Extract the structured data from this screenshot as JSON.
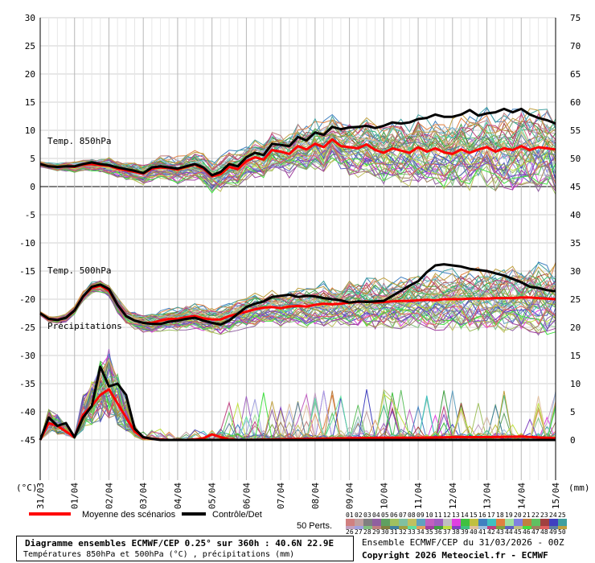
{
  "chart_data": {
    "type": "line",
    "left_axis": {
      "unit": "(°C)",
      "range": [
        -45,
        30
      ],
      "ticks": [
        30,
        25,
        20,
        15,
        10,
        5,
        0,
        -5,
        -10,
        -15,
        -20,
        -25,
        -30,
        -35,
        -40,
        -45
      ]
    },
    "right_axis": {
      "unit": "(mm)",
      "range": [
        0,
        75
      ],
      "ticks": [
        75,
        70,
        65,
        60,
        55,
        50,
        45,
        40,
        35,
        30,
        25,
        20,
        15,
        10,
        5,
        0
      ]
    },
    "x_labels": [
      "31/03",
      "01/04",
      "02/04",
      "03/04",
      "04/04",
      "05/04",
      "06/04",
      "07/04",
      "08/04",
      "09/04",
      "10/04",
      "11/04",
      "12/04",
      "13/04",
      "14/04",
      "15/04"
    ],
    "panel_labels": {
      "t850": "Temp. 850hPa",
      "t500": "Temp. 500hPa",
      "precip": "Précipitations"
    },
    "grid": true,
    "series": [
      {
        "name": "Moyenne des scénarios",
        "color": "#ff0000",
        "group": "t850",
        "x": [
          0,
          0.25,
          0.5,
          0.75,
          1,
          1.25,
          1.5,
          1.75,
          2,
          2.25,
          2.5,
          2.75,
          3,
          3.25,
          3.5,
          3.75,
          4,
          4.25,
          4.5,
          4.75,
          5,
          5.25,
          5.5,
          5.75,
          6,
          6.25,
          6.5,
          6.75,
          7,
          7.25,
          7.5,
          7.75,
          8,
          8.25,
          8.5,
          8.75,
          9,
          9.25,
          9.5,
          9.75,
          10,
          10.25,
          10.5,
          10.75,
          11,
          11.25,
          11.5,
          11.75,
          12,
          12.25,
          12.5,
          12.75,
          13,
          13.25,
          13.5,
          13.75,
          14,
          14.25,
          14.5,
          14.75,
          15
        ],
        "y": [
          4,
          3.6,
          3.5,
          3.6,
          3.5,
          3.9,
          4,
          3.8,
          3.7,
          3.2,
          2.9,
          2.6,
          2.3,
          3.2,
          3.4,
          3.3,
          3,
          3.5,
          3.9,
          3.2,
          1.8,
          2.2,
          3.5,
          3.1,
          4.5,
          5.2,
          4.8,
          6.5,
          6.2,
          5.8,
          7.2,
          6.6,
          7.6,
          7,
          8.4,
          7.2,
          7,
          6.8,
          7.5,
          6.5,
          6,
          6.8,
          6.4,
          6,
          7,
          6.2,
          6.8,
          6.1,
          5.8,
          6.6,
          6,
          6.6,
          7,
          6.2,
          6.8,
          6.5,
          7.2,
          6.5,
          7,
          6.8,
          6.6
        ]
      },
      {
        "name": "Contrôle/Det",
        "color": "#000000",
        "group": "t850",
        "x": [
          0,
          0.25,
          0.5,
          0.75,
          1,
          1.25,
          1.5,
          1.75,
          2,
          2.25,
          2.5,
          2.75,
          3,
          3.25,
          3.5,
          3.75,
          4,
          4.25,
          4.5,
          4.75,
          5,
          5.25,
          5.5,
          5.75,
          6,
          6.25,
          6.5,
          6.75,
          7,
          7.25,
          7.5,
          7.75,
          8,
          8.25,
          8.5,
          8.75,
          9,
          9.25,
          9.5,
          9.75,
          10,
          10.25,
          10.5,
          10.75,
          11,
          11.25,
          11.5,
          11.75,
          12,
          12.25,
          12.5,
          12.75,
          13,
          13.25,
          13.5,
          13.75,
          14,
          14.25,
          14.5,
          14.75,
          15
        ],
        "y": [
          4,
          3.6,
          3.5,
          3.6,
          3.6,
          4,
          4.3,
          4,
          3.8,
          3.4,
          3.1,
          2.8,
          2.4,
          3.4,
          3.6,
          3.4,
          3.2,
          3.6,
          4,
          3.4,
          2,
          2.6,
          4,
          3.6,
          5.2,
          6,
          5.6,
          7.6,
          7.4,
          7.2,
          8.8,
          8.2,
          9.6,
          9.2,
          10.6,
          10.2,
          10.5,
          10.6,
          10.8,
          10.4,
          10.8,
          11.4,
          11.2,
          11.4,
          12,
          12.2,
          12.8,
          12.4,
          12.4,
          12.8,
          13.6,
          12.6,
          13,
          13.2,
          13.8,
          13.2,
          13.8,
          12.8,
          12.2,
          11.8,
          11.2
        ]
      },
      {
        "name": "Moyenne des scénarios",
        "color": "#ff0000",
        "group": "t500",
        "x": [
          0,
          0.25,
          0.5,
          0.75,
          1,
          1.25,
          1.5,
          1.75,
          2,
          2.25,
          2.5,
          2.75,
          3,
          3.25,
          3.5,
          3.75,
          4,
          4.25,
          4.5,
          4.75,
          5,
          5.25,
          5.5,
          5.75,
          6,
          6.25,
          6.5,
          6.75,
          7,
          7.25,
          7.5,
          7.75,
          8,
          8.25,
          8.5,
          8.75,
          9,
          9.25,
          9.5,
          9.75,
          10,
          10.25,
          10.5,
          10.75,
          11,
          11.25,
          11.5,
          11.75,
          12,
          12.25,
          12.5,
          12.75,
          13,
          13.25,
          13.5,
          13.75,
          14,
          14.25,
          14.5,
          14.75,
          15
        ],
        "y": [
          -22.5,
          -23.5,
          -23.7,
          -23.3,
          -22,
          -19.5,
          -18,
          -17.6,
          -18.5,
          -21,
          -23,
          -23.8,
          -24.2,
          -24.2,
          -23.8,
          -23.5,
          -23.5,
          -23.2,
          -23,
          -23.4,
          -23.6,
          -23.6,
          -23,
          -22.6,
          -22.2,
          -21.8,
          -21.5,
          -21.4,
          -21.6,
          -21.3,
          -21.2,
          -21.3,
          -21,
          -20.8,
          -20.9,
          -20.8,
          -20.6,
          -20.5,
          -20.4,
          -20.6,
          -20.5,
          -20.4,
          -20.3,
          -20.3,
          -20.2,
          -20.1,
          -20.2,
          -20,
          -20,
          -20,
          -19.9,
          -19.9,
          -19.9,
          -19.8,
          -19.8,
          -19.8,
          -19.7,
          -19.7,
          -19.8,
          -19.9,
          -20
        ]
      },
      {
        "name": "Contrôle/Det",
        "color": "#000000",
        "group": "t500",
        "x": [
          0,
          0.25,
          0.5,
          0.75,
          1,
          1.25,
          1.5,
          1.75,
          2,
          2.25,
          2.5,
          2.75,
          3,
          3.25,
          3.5,
          3.75,
          4,
          4.25,
          4.5,
          4.75,
          5,
          5.25,
          5.5,
          5.75,
          6,
          6.25,
          6.5,
          6.75,
          7,
          7.25,
          7.5,
          7.75,
          8,
          8.25,
          8.5,
          8.75,
          9,
          9.25,
          9.5,
          9.75,
          10,
          10.25,
          10.5,
          10.75,
          11,
          11.25,
          11.5,
          11.75,
          12,
          12.25,
          12.5,
          12.75,
          13,
          13.25,
          13.5,
          13.75,
          14,
          14.25,
          14.5,
          14.75,
          15
        ],
        "y": [
          -22.5,
          -23.5,
          -23.7,
          -23.3,
          -22,
          -19.5,
          -17.8,
          -17.4,
          -18.2,
          -21,
          -23,
          -23.8,
          -24.2,
          -24.4,
          -24.4,
          -24,
          -23.8,
          -23.5,
          -23.3,
          -23.8,
          -24.2,
          -24.5,
          -23.8,
          -22.6,
          -21.4,
          -20.8,
          -20.4,
          -19.6,
          -19.4,
          -19.2,
          -19.6,
          -19.4,
          -19.5,
          -19.8,
          -20,
          -20.2,
          -20.6,
          -20.4,
          -20.5,
          -20.4,
          -20.3,
          -19.4,
          -18.5,
          -17.6,
          -16.8,
          -15.2,
          -14,
          -13.8,
          -14,
          -14.2,
          -14.6,
          -14.8,
          -15,
          -15.4,
          -15.8,
          -16.4,
          -17,
          -17.8,
          -18,
          -18.4,
          -18.6
        ]
      },
      {
        "name": "Moyenne des scénarios",
        "color": "#ff0000",
        "group": "precip",
        "x": [
          0,
          0.25,
          0.5,
          0.75,
          1,
          1.25,
          1.5,
          1.75,
          2,
          2.25,
          2.5,
          2.75,
          3,
          3.25,
          3.5,
          3.75,
          4,
          4.25,
          4.5,
          4.75,
          5,
          5.25,
          5.5,
          5.75,
          6,
          7,
          8,
          9,
          10,
          11,
          12,
          13,
          14,
          15
        ],
        "y": [
          0,
          3,
          2.5,
          1.5,
          0.5,
          4.5,
          6,
          8,
          9,
          6.5,
          4,
          1.5,
          0.4,
          0.2,
          0.1,
          0,
          0,
          0,
          0.1,
          0.3,
          1,
          0.5,
          0.1,
          0,
          0,
          0.1,
          0.2,
          0.3,
          0.4,
          0.4,
          0.5,
          0.5,
          0.6,
          0.3
        ]
      },
      {
        "name": "Contrôle/Det",
        "color": "#000000",
        "group": "precip",
        "x": [
          0,
          0.25,
          0.5,
          0.75,
          1,
          1.25,
          1.5,
          1.75,
          2,
          2.25,
          2.5,
          2.75,
          3,
          3.25,
          3.5,
          3.75,
          4,
          4.5,
          5,
          5.5,
          6,
          7,
          8,
          9,
          10,
          11,
          12,
          13,
          14,
          15
        ],
        "y": [
          0,
          4,
          2.5,
          3,
          0.5,
          4,
          6,
          13,
          9.5,
          10,
          8,
          2,
          0.5,
          0.2,
          0,
          0,
          0,
          0,
          0,
          0,
          0,
          0,
          0,
          0,
          0,
          0,
          0,
          0,
          0,
          0
        ]
      }
    ],
    "ensemble_members": 50
  },
  "legend": {
    "mean_label": "Moyenne des scénarios",
    "control_label": "Contrôle/Det",
    "perts_label": "50 Perts.",
    "member_numbers_row1": [
      "01",
      "02",
      "03",
      "04",
      "05",
      "06",
      "07",
      "08",
      "09",
      "10",
      "11",
      "12",
      "13",
      "14",
      "15",
      "16",
      "17",
      "18",
      "19",
      "20",
      "21",
      "22",
      "23",
      "24",
      "25"
    ],
    "member_numbers_row2": [
      "26",
      "27",
      "28",
      "29",
      "30",
      "31",
      "32",
      "33",
      "34",
      "35",
      "36",
      "37",
      "38",
      "39",
      "40",
      "41",
      "42",
      "43",
      "44",
      "45",
      "46",
      "47",
      "48",
      "49",
      "50"
    ],
    "member_colors": [
      "#d08080",
      "#c0a0a0",
      "#808080",
      "#9060a0",
      "#60a060",
      "#a0c060",
      "#80c0a0",
      "#c0c060",
      "#60a0c0",
      "#c060c0",
      "#a060c0",
      "#c0c0c0",
      "#e040e0",
      "#40c040",
      "#c0c040",
      "#4080c0",
      "#40c0c0",
      "#e08040",
      "#a0e0a0",
      "#8080e0",
      "#c08040",
      "#60c060",
      "#a04040",
      "#4040c0",
      "#40a0a0",
      "#c0a0c0",
      "#a0a0e0",
      "#80c080",
      "#c08080",
      "#808040",
      "#4080a0",
      "#a0a040",
      "#60e0a0",
      "#e0a060",
      "#a040a0",
      "#40a040",
      "#c0e040",
      "#8040c0",
      "#40c080",
      "#e0c0a0",
      "#a0c0e0",
      "#c04080",
      "#80a040",
      "#6060c0",
      "#c0c080",
      "#40e040",
      "#a08060",
      "#e06060",
      "#6080a0",
      "#c0a040"
    ]
  },
  "footer": {
    "title": "Diagramme ensembles ECMWF/CEP 0.25° sur 360h : 40.6N 22.9E",
    "subtitle": "Températures 850hPa et 500hPa (°C) , précipitations (mm)",
    "run_info": "Ensemble ECMWF/CEP du 31/03/2026 - 00Z",
    "copyright": "Copyright 2026 Meteociel.fr - ECMWF"
  }
}
